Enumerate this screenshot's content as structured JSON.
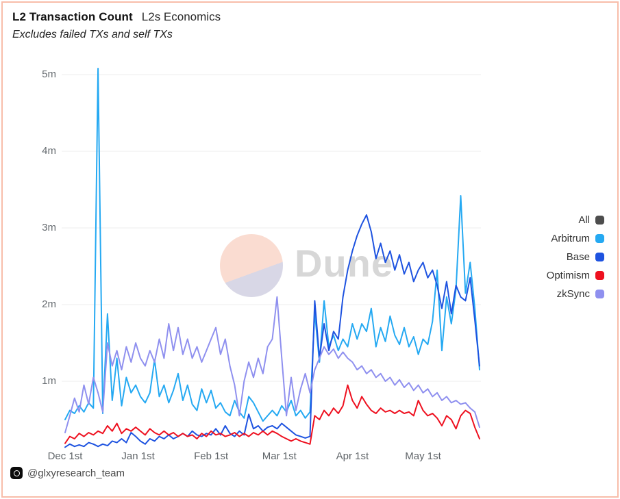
{
  "header": {
    "title": "L2 Transaction Count",
    "context": "L2s Economics",
    "subtitle": "Excludes failed TXs and self TXs"
  },
  "watermark": {
    "brand": "Dune"
  },
  "footer": {
    "handle": "@glxyresearch_team"
  },
  "legend": {
    "position": "right",
    "items": [
      {
        "label": "All",
        "color": "#4d4d4d"
      },
      {
        "label": "Arbitrum",
        "color": "#25a9f2"
      },
      {
        "label": "Base",
        "color": "#1e53e0"
      },
      {
        "label": "Optimism",
        "color": "#ee101f"
      },
      {
        "label": "zkSync",
        "color": "#8f90ef"
      }
    ]
  },
  "chart_data": {
    "type": "line",
    "title": "L2 Transaction Count",
    "subtitle": "Excludes failed TXs and self TXs",
    "grid": "horizontal only",
    "legend_position": "right",
    "x_axis": {
      "unit": "days after Dec 1",
      "tick_labels": [
        "Dec 1st",
        "Jan 1st",
        "Feb 1st",
        "Mar 1st",
        "Apr 1st",
        "May 1st"
      ],
      "tick_days": [
        0,
        31,
        62,
        91,
        122,
        152
      ],
      "range_days": [
        0,
        176
      ]
    },
    "y_axis": {
      "unit": "transactions (millions)",
      "tick_labels": [
        "1m",
        "2m",
        "3m",
        "4m",
        "5m"
      ],
      "tick_values": [
        1,
        2,
        3,
        4,
        5
      ],
      "range": [
        0,
        5.2
      ]
    },
    "sample_interval_days": 2,
    "all_series_note": "'All' appears in the legend (gray swatch) but no gray line is drawn on the plot",
    "series": [
      {
        "name": "Arbitrum",
        "color": "#25a9f2",
        "values_m": [
          0.5,
          0.62,
          0.58,
          0.68,
          0.6,
          0.72,
          0.65,
          5.08,
          0.58,
          1.88,
          0.75,
          1.3,
          0.68,
          1.05,
          0.85,
          0.95,
          0.8,
          0.72,
          0.85,
          1.28,
          0.8,
          0.95,
          0.72,
          0.88,
          1.1,
          0.75,
          0.95,
          0.7,
          0.62,
          0.9,
          0.72,
          0.88,
          0.65,
          0.72,
          0.6,
          0.55,
          0.75,
          0.6,
          0.52,
          0.8,
          0.72,
          0.6,
          0.48,
          0.55,
          0.62,
          0.55,
          0.68,
          0.6,
          0.75,
          0.55,
          0.62,
          0.52,
          0.6,
          1.9,
          1.25,
          2.05,
          1.45,
          1.6,
          1.4,
          1.55,
          1.45,
          1.75,
          1.55,
          1.75,
          1.65,
          1.95,
          1.45,
          1.7,
          1.52,
          1.85,
          1.6,
          1.48,
          1.7,
          1.45,
          1.58,
          1.35,
          1.55,
          1.48,
          1.78,
          2.45,
          1.4,
          2.1,
          1.75,
          2.2,
          3.42,
          2.15,
          2.55,
          1.95,
          1.15
        ]
      },
      {
        "name": "Base",
        "color": "#1e53e0",
        "values_m": [
          0.14,
          0.18,
          0.15,
          0.17,
          0.15,
          0.2,
          0.18,
          0.15,
          0.18,
          0.16,
          0.22,
          0.2,
          0.25,
          0.2,
          0.33,
          0.28,
          0.22,
          0.18,
          0.25,
          0.22,
          0.28,
          0.25,
          0.3,
          0.25,
          0.28,
          0.32,
          0.28,
          0.35,
          0.3,
          0.28,
          0.32,
          0.3,
          0.38,
          0.3,
          0.42,
          0.32,
          0.28,
          0.35,
          0.3,
          0.57,
          0.38,
          0.42,
          0.35,
          0.4,
          0.42,
          0.38,
          0.45,
          0.4,
          0.35,
          0.3,
          0.28,
          0.26,
          0.28,
          2.05,
          1.3,
          1.75,
          1.4,
          1.65,
          1.55,
          2.1,
          2.45,
          2.7,
          2.9,
          3.05,
          3.17,
          2.95,
          2.6,
          2.8,
          2.55,
          2.7,
          2.45,
          2.65,
          2.4,
          2.55,
          2.3,
          2.45,
          2.55,
          2.35,
          2.45,
          2.25,
          1.95,
          2.3,
          1.88,
          2.25,
          2.1,
          2.05,
          2.35,
          1.8,
          1.2
        ]
      },
      {
        "name": "Optimism",
        "color": "#ee101f",
        "values_m": [
          0.19,
          0.28,
          0.25,
          0.32,
          0.28,
          0.33,
          0.3,
          0.35,
          0.32,
          0.42,
          0.35,
          0.45,
          0.32,
          0.38,
          0.35,
          0.4,
          0.35,
          0.3,
          0.38,
          0.33,
          0.3,
          0.35,
          0.3,
          0.33,
          0.28,
          0.32,
          0.28,
          0.3,
          0.25,
          0.32,
          0.28,
          0.35,
          0.3,
          0.32,
          0.28,
          0.3,
          0.33,
          0.28,
          0.32,
          0.28,
          0.33,
          0.3,
          0.35,
          0.3,
          0.35,
          0.32,
          0.28,
          0.25,
          0.22,
          0.25,
          0.22,
          0.2,
          0.18,
          0.55,
          0.5,
          0.62,
          0.55,
          0.65,
          0.58,
          0.68,
          0.95,
          0.75,
          0.65,
          0.8,
          0.7,
          0.62,
          0.58,
          0.65,
          0.6,
          0.62,
          0.58,
          0.62,
          0.58,
          0.6,
          0.55,
          0.75,
          0.62,
          0.55,
          0.58,
          0.52,
          0.42,
          0.55,
          0.5,
          0.38,
          0.55,
          0.62,
          0.58,
          0.4,
          0.25
        ]
      },
      {
        "name": "zkSync",
        "color": "#8f90ef",
        "values_m": [
          0.33,
          0.55,
          0.78,
          0.6,
          0.95,
          0.7,
          1.05,
          0.85,
          0.6,
          1.5,
          1.2,
          1.4,
          1.15,
          1.45,
          1.25,
          1.5,
          1.3,
          1.2,
          1.4,
          1.25,
          1.55,
          1.3,
          1.75,
          1.4,
          1.7,
          1.35,
          1.55,
          1.3,
          1.45,
          1.25,
          1.4,
          1.55,
          1.7,
          1.35,
          1.55,
          1.2,
          0.95,
          0.55,
          1.0,
          1.25,
          1.05,
          1.3,
          1.1,
          1.45,
          1.55,
          2.1,
          1.3,
          0.55,
          1.05,
          0.62,
          0.9,
          1.1,
          0.85,
          1.15,
          1.3,
          1.45,
          1.35,
          1.42,
          1.3,
          1.38,
          1.3,
          1.25,
          1.15,
          1.2,
          1.1,
          1.15,
          1.05,
          1.1,
          1.0,
          1.05,
          0.95,
          1.02,
          0.92,
          0.98,
          0.88,
          0.95,
          0.85,
          0.9,
          0.8,
          0.85,
          0.75,
          0.8,
          0.72,
          0.75,
          0.7,
          0.72,
          0.65,
          0.6,
          0.4
        ]
      }
    ]
  },
  "colors": {
    "frame_border": "#f8bda9",
    "gridline": "#ececec",
    "axis_text": "#666b70",
    "watermark_text": "#d7d7d7",
    "watermark_circle_top": "#fadcd1",
    "watermark_circle_bottom": "#d8d7e6"
  }
}
